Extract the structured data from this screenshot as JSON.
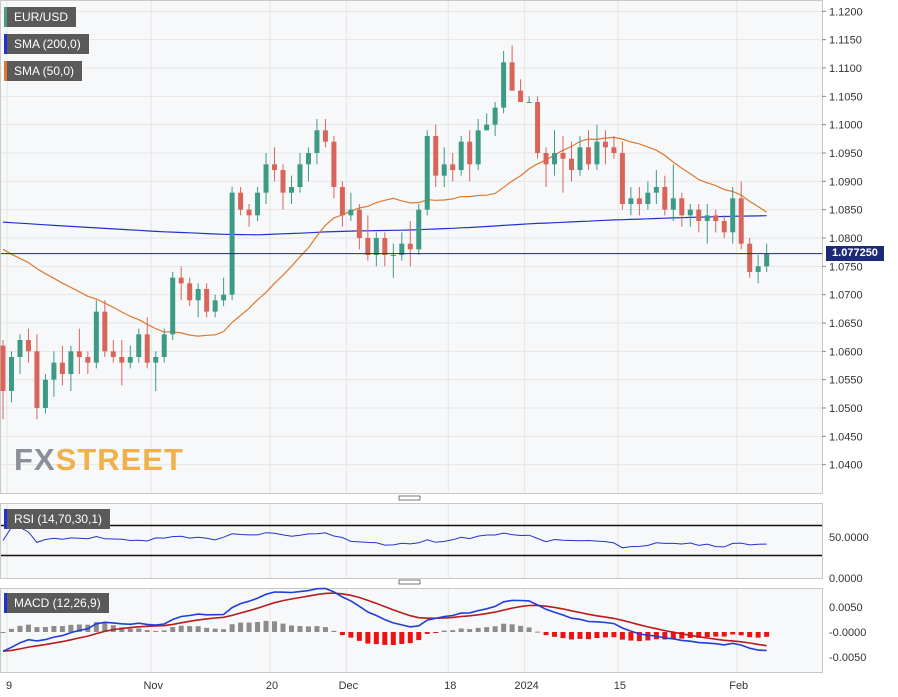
{
  "logo": {
    "brand": "FX",
    "accent": "STREET"
  },
  "legends": {
    "pair": {
      "label": "EUR/USD",
      "color": "#4a9a86"
    },
    "sma200": {
      "label": "SMA (200,0)",
      "color": "#2233cc"
    },
    "sma50": {
      "label": "SMA (50,0)",
      "color": "#e0782e"
    },
    "rsi": {
      "label": "RSI (14,70,30,1)",
      "color": "#2233cc"
    },
    "macd": {
      "label": "MACD (12,26,9)",
      "color": "#2233cc"
    }
  },
  "last_price_label": "1.077250",
  "colors": {
    "up": "#3d9a85",
    "down": "#d9645a",
    "grid": "#e6e6e6",
    "macd_line": "#1f3fd8",
    "signal_line": "#b81c1c",
    "hist_pos": "#8c8c8c",
    "hist_neg": "#ee1111"
  },
  "chart_data": [
    {
      "type": "candlestick",
      "symbol": "EUR/USD",
      "ylim": [
        1.035,
        1.122
      ],
      "y_ticks": [
        "1.1200",
        "1.1150",
        "1.1100",
        "1.1050",
        "1.1000",
        "1.0950",
        "1.0900",
        "1.0850",
        "1.0800",
        "1.0750",
        "1.0700",
        "1.0650",
        "1.0600",
        "1.0550",
        "1.0500",
        "1.0450",
        "1.0400"
      ],
      "x_ticks": [
        "9",
        "Nov",
        "20",
        "Dec",
        "18",
        "2024",
        "15",
        "Feb"
      ],
      "last_price": 1.07725,
      "candles": [
        [
          1.061,
          1.062,
          1.048,
          1.053
        ],
        [
          1.053,
          1.06,
          1.051,
          1.059
        ],
        [
          1.059,
          1.063,
          1.056,
          1.062
        ],
        [
          1.062,
          1.064,
          1.058,
          1.06
        ],
        [
          1.06,
          1.063,
          1.048,
          1.05
        ],
        [
          1.05,
          1.056,
          1.049,
          1.055
        ],
        [
          1.055,
          1.06,
          1.052,
          1.058
        ],
        [
          1.058,
          1.061,
          1.054,
          1.056
        ],
        [
          1.056,
          1.061,
          1.053,
          1.06
        ],
        [
          1.06,
          1.064,
          1.056,
          1.059
        ],
        [
          1.059,
          1.06,
          1.056,
          1.058
        ],
        [
          1.058,
          1.069,
          1.057,
          1.067
        ],
        [
          1.067,
          1.069,
          1.059,
          1.06
        ],
        [
          1.06,
          1.062,
          1.058,
          1.059
        ],
        [
          1.059,
          1.062,
          1.054,
          1.058
        ],
        [
          1.058,
          1.061,
          1.057,
          1.059
        ],
        [
          1.059,
          1.064,
          1.058,
          1.063
        ],
        [
          1.063,
          1.066,
          1.057,
          1.058
        ],
        [
          1.058,
          1.06,
          1.053,
          1.059
        ],
        [
          1.059,
          1.064,
          1.058,
          1.063
        ],
        [
          1.063,
          1.074,
          1.062,
          1.073
        ],
        [
          1.073,
          1.075,
          1.069,
          1.072
        ],
        [
          1.072,
          1.073,
          1.068,
          1.069
        ],
        [
          1.069,
          1.072,
          1.066,
          1.071
        ],
        [
          1.071,
          1.072,
          1.066,
          1.067
        ],
        [
          1.067,
          1.07,
          1.066,
          1.069
        ],
        [
          1.069,
          1.073,
          1.068,
          1.07
        ],
        [
          1.07,
          1.089,
          1.069,
          1.088
        ],
        [
          1.088,
          1.089,
          1.084,
          1.085
        ],
        [
          1.085,
          1.086,
          1.082,
          1.084
        ],
        [
          1.084,
          1.089,
          1.083,
          1.088
        ],
        [
          1.088,
          1.095,
          1.086,
          1.093
        ],
        [
          1.093,
          1.096,
          1.09,
          1.092
        ],
        [
          1.092,
          1.093,
          1.085,
          1.088
        ],
        [
          1.088,
          1.091,
          1.086,
          1.089
        ],
        [
          1.089,
          1.095,
          1.088,
          1.093
        ],
        [
          1.093,
          1.096,
          1.09,
          1.095
        ],
        [
          1.095,
          1.101,
          1.093,
          1.099
        ],
        [
          1.099,
          1.101,
          1.096,
          1.097
        ],
        [
          1.097,
          1.098,
          1.087,
          1.089
        ],
        [
          1.089,
          1.09,
          1.082,
          1.084
        ],
        [
          1.084,
          1.088,
          1.083,
          1.085
        ],
        [
          1.085,
          1.086,
          1.078,
          1.08
        ],
        [
          1.08,
          1.084,
          1.076,
          1.077
        ],
        [
          1.077,
          1.081,
          1.075,
          1.08
        ],
        [
          1.08,
          1.081,
          1.075,
          1.077
        ],
        [
          1.077,
          1.079,
          1.073,
          1.077
        ],
        [
          1.077,
          1.081,
          1.076,
          1.079
        ],
        [
          1.079,
          1.083,
          1.075,
          1.078
        ],
        [
          1.078,
          1.086,
          1.077,
          1.085
        ],
        [
          1.085,
          1.099,
          1.084,
          1.098
        ],
        [
          1.098,
          1.1,
          1.089,
          1.091
        ],
        [
          1.091,
          1.096,
          1.089,
          1.093
        ],
        [
          1.093,
          1.095,
          1.09,
          1.092
        ],
        [
          1.092,
          1.098,
          1.091,
          1.097
        ],
        [
          1.097,
          1.099,
          1.09,
          1.093
        ],
        [
          1.093,
          1.101,
          1.092,
          1.099
        ],
        [
          1.099,
          1.102,
          1.099,
          1.1
        ],
        [
          1.1,
          1.104,
          1.098,
          1.103
        ],
        [
          1.103,
          1.113,
          1.102,
          1.111
        ],
        [
          1.111,
          1.114,
          1.106,
          1.106
        ],
        [
          1.106,
          1.108,
          1.104,
          1.104
        ],
        [
          1.104,
          1.105,
          1.104,
          1.104
        ],
        [
          1.104,
          1.105,
          1.094,
          1.095
        ],
        [
          1.095,
          1.096,
          1.089,
          1.093
        ],
        [
          1.093,
          1.099,
          1.091,
          1.095
        ],
        [
          1.095,
          1.098,
          1.088,
          1.094
        ],
        [
          1.094,
          1.097,
          1.09,
          1.092
        ],
        [
          1.092,
          1.098,
          1.091,
          1.096
        ],
        [
          1.096,
          1.099,
          1.092,
          1.093
        ],
        [
          1.093,
          1.1,
          1.092,
          1.097
        ],
        [
          1.097,
          1.099,
          1.093,
          1.096
        ],
        [
          1.096,
          1.098,
          1.094,
          1.095
        ],
        [
          1.095,
          1.097,
          1.085,
          1.086
        ],
        [
          1.086,
          1.089,
          1.084,
          1.087
        ],
        [
          1.087,
          1.089,
          1.084,
          1.086
        ],
        [
          1.086,
          1.09,
          1.085,
          1.088
        ],
        [
          1.088,
          1.092,
          1.086,
          1.089
        ],
        [
          1.089,
          1.091,
          1.084,
          1.085
        ],
        [
          1.085,
          1.093,
          1.083,
          1.087
        ],
        [
          1.087,
          1.088,
          1.082,
          1.084
        ],
        [
          1.084,
          1.086,
          1.082,
          1.085
        ],
        [
          1.085,
          1.086,
          1.081,
          1.083
        ],
        [
          1.083,
          1.086,
          1.079,
          1.084
        ],
        [
          1.084,
          1.085,
          1.081,
          1.083
        ],
        [
          1.083,
          1.084,
          1.08,
          1.081
        ],
        [
          1.081,
          1.089,
          1.079,
          1.087
        ],
        [
          1.087,
          1.09,
          1.078,
          1.079
        ],
        [
          1.079,
          1.08,
          1.073,
          1.074
        ],
        [
          1.074,
          1.077,
          1.072,
          1.075
        ],
        [
          1.075,
          1.079,
          1.074,
          1.0772
        ]
      ]
    },
    {
      "type": "line",
      "title": "RSI (14,70,30,1)",
      "y_ticks": [
        "50.0000",
        "0.0000"
      ],
      "ylim": [
        0,
        100
      ],
      "levels": [
        70,
        30
      ]
    },
    {
      "type": "line+histogram",
      "title": "MACD (12,26,9)",
      "y_ticks": [
        "0.0050",
        "-0.0000",
        "-0.0050"
      ]
    }
  ]
}
